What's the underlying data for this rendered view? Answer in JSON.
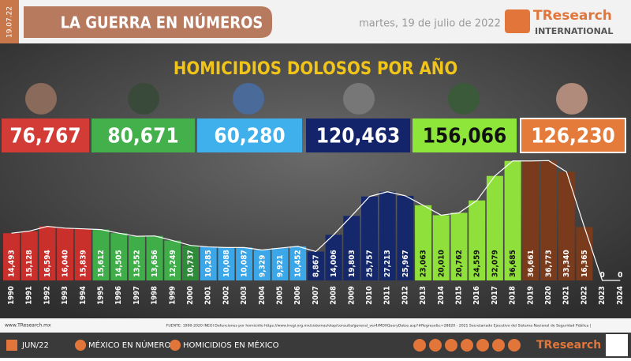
{
  "header": {
    "date_tag": "19.07.22",
    "section": "LA GUERRA EN NÚMEROS",
    "date": "martes, 19 de julio de 2022",
    "brand": "TResearch",
    "brand_sub": "INTERNATIONAL"
  },
  "chart_data": {
    "type": "bar",
    "title": "HOMICIDIOS DOLOSOS POR AÑO",
    "categories": [
      "1990",
      "1991",
      "1992",
      "1993",
      "1994",
      "1995",
      "1996",
      "1997",
      "1998",
      "1999",
      "2000",
      "2001",
      "2002",
      "2003",
      "2004",
      "2005",
      "2006",
      "2007",
      "2008",
      "2009",
      "2010",
      "2011",
      "2012",
      "2013",
      "2014",
      "2015",
      "2016",
      "2017",
      "2018",
      "2019",
      "2020",
      "2021",
      "2022",
      "2023",
      "2024"
    ],
    "values": [
      14493,
      15128,
      16594,
      16040,
      15839,
      15612,
      14505,
      13552,
      13656,
      12249,
      10737,
      10285,
      10088,
      10087,
      9329,
      9921,
      10452,
      8867,
      14006,
      19803,
      25757,
      27213,
      25967,
      23063,
      20010,
      20762,
      24559,
      32079,
      36685,
      36661,
      36773,
      33340,
      16365,
      0,
      0
    ],
    "value_labels": [
      "14,493",
      "15,128",
      "16,594",
      "16,040",
      "15,839",
      "15,612",
      "14,505",
      "13,552",
      "13,656",
      "12,249",
      "10,737",
      "10,285",
      "10,088",
      "10,087",
      "9,329",
      "9,921",
      "10,452",
      "8,867",
      "14,006",
      "19,803",
      "25,757",
      "27,213",
      "25,967",
      "23,063",
      "20,010",
      "20,762",
      "24,559",
      "32,079",
      "36,685",
      "36,661",
      "36,773",
      "33,340",
      "16,365",
      "0",
      "0"
    ],
    "colors": [
      "#c9302c",
      "#c9302c",
      "#c9302c",
      "#c9302c",
      "#c9302c",
      "#3fae49",
      "#3fae49",
      "#3fae49",
      "#3fae49",
      "#3fae49",
      "#2f8a3a",
      "#3ba6e8",
      "#3ba6e8",
      "#3ba6e8",
      "#3ba6e8",
      "#3ba6e8",
      "#3ba6e8",
      "#14286b",
      "#14286b",
      "#14286b",
      "#14286b",
      "#14286b",
      "#14286b",
      "#8fe03a",
      "#8fe03a",
      "#8fe03a",
      "#8fe03a",
      "#8fe03a",
      "#8fe03a",
      "#7a3a1c",
      "#7a3a1c",
      "#7a3a1c",
      "#7a3a1c",
      "#7a3a1c",
      "#7a3a1c"
    ],
    "ylim": [
      0,
      40000
    ],
    "totals": [
      {
        "value": 76767,
        "label": "76,767",
        "color": "#d33b36"
      },
      {
        "value": 80671,
        "label": "80,671",
        "color": "#43b04b"
      },
      {
        "value": 60280,
        "label": "60,280",
        "color": "#3fb0ec"
      },
      {
        "value": 120463,
        "label": "120,463",
        "color": "#13246a"
      },
      {
        "value": 156066,
        "label": "156,066",
        "color": "#8fe63b"
      },
      {
        "value": 126230,
        "label": "126,230",
        "color": "#e47b3a"
      }
    ]
  },
  "footer": {
    "site": "www.TResearch.mx",
    "source": "FUENTE: 1990-2020 INEGI Defunciones por homicidio https://www.inegi.org.mx/sistemas/olap/consulta/general_ver4/MDXQueryDatos.asp?#Regreso&c=28820 - 2021 Secretariado Ejecutivo del Sistema Nacional de Seguridad Pública |",
    "month": "JUN/22",
    "link1": "MÉXICO EN NÚMEROS",
    "link2": "HOMICIDIOS EN MÉXICO"
  }
}
